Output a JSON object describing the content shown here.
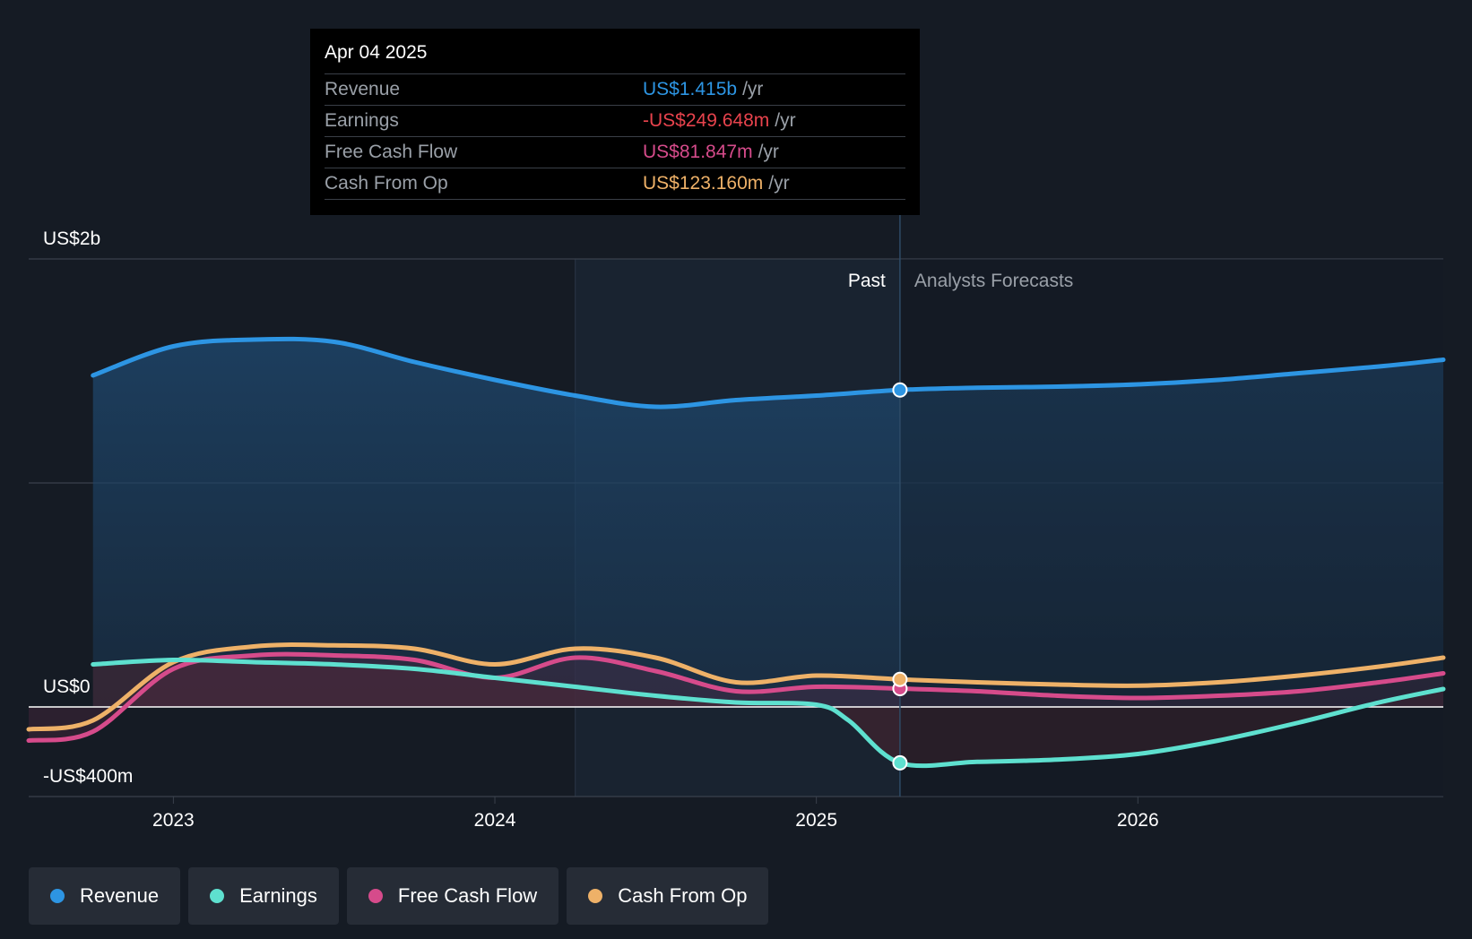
{
  "tooltip": {
    "date": "Apr 04 2025",
    "rows": [
      {
        "label": "Revenue",
        "value": "US$1.415b",
        "unit": "/yr",
        "color": "#2d95e3"
      },
      {
        "label": "Earnings",
        "value": "-US$249.648m",
        "unit": "/yr",
        "color": "#e8434d"
      },
      {
        "label": "Free Cash Flow",
        "value": "US$81.847m",
        "unit": "/yr",
        "color": "#d64b8b"
      },
      {
        "label": "Cash From Op",
        "value": "US$123.160m",
        "unit": "/yr",
        "color": "#eeb168"
      }
    ]
  },
  "legend": [
    {
      "label": "Revenue",
      "color": "#2d95e3"
    },
    {
      "label": "Earnings",
      "color": "#5ee0cf"
    },
    {
      "label": "Free Cash Flow",
      "color": "#d64b8b"
    },
    {
      "label": "Cash From Op",
      "color": "#eeb168"
    }
  ],
  "chart_data": {
    "type": "line",
    "title": "",
    "xlabel": "",
    "ylabel": "",
    "xlim": [
      2022.55,
      2026.95
    ],
    "ylim": [
      -400,
      2000
    ],
    "y_tick_labels": [
      {
        "value": 2000,
        "label": "US$2b"
      },
      {
        "value": 0,
        "label": "US$0"
      },
      {
        "value": -400,
        "label": "-US$400m"
      }
    ],
    "gridlines": [
      2000,
      1000,
      -400
    ],
    "x_ticks": [
      {
        "value": 2023,
        "label": "2023"
      },
      {
        "value": 2024,
        "label": "2024"
      },
      {
        "value": 2025,
        "label": "2025"
      },
      {
        "value": 2026,
        "label": "2026"
      }
    ],
    "past_label": "Past",
    "forecast_label": "Analysts Forecasts",
    "past_band_start": 2024.25,
    "divider_x": 2025.26,
    "series": [
      {
        "name": "Revenue",
        "color": "#2d95e3",
        "fill": true,
        "x": [
          2022.75,
          2023.0,
          2023.25,
          2023.5,
          2023.75,
          2024.0,
          2024.25,
          2024.5,
          2024.75,
          2025.0,
          2025.26,
          2025.5,
          2025.75,
          2026.0,
          2026.25,
          2026.5,
          2026.75,
          2026.95
        ],
        "y": [
          1480,
          1610,
          1640,
          1630,
          1540,
          1460,
          1390,
          1340,
          1370,
          1390,
          1415,
          1425,
          1430,
          1440,
          1460,
          1490,
          1520,
          1550
        ]
      },
      {
        "name": "Earnings",
        "color": "#5ee0cf",
        "fill": false,
        "x": [
          2022.75,
          2023.0,
          2023.25,
          2023.5,
          2023.75,
          2024.0,
          2024.25,
          2024.5,
          2024.75,
          2025.0,
          2025.1,
          2025.26,
          2025.5,
          2025.75,
          2026.0,
          2026.25,
          2026.5,
          2026.75,
          2026.95
        ],
        "y": [
          190,
          210,
          200,
          190,
          170,
          130,
          90,
          50,
          20,
          10,
          -60,
          -249.648,
          -245,
          -235,
          -210,
          -150,
          -70,
          20,
          80
        ]
      },
      {
        "name": "Free Cash Flow",
        "color": "#d64b8b",
        "fill": false,
        "x": [
          2022.55,
          2022.75,
          2023.0,
          2023.25,
          2023.5,
          2023.75,
          2024.0,
          2024.25,
          2024.5,
          2024.75,
          2025.0,
          2025.26,
          2025.5,
          2025.75,
          2026.0,
          2026.25,
          2026.5,
          2026.75,
          2026.95
        ],
        "y": [
          -150,
          -110,
          170,
          230,
          230,
          210,
          130,
          220,
          160,
          70,
          90,
          81.847,
          70,
          50,
          40,
          50,
          70,
          110,
          150
        ]
      },
      {
        "name": "Cash From Op",
        "color": "#eeb168",
        "fill": false,
        "x": [
          2022.55,
          2022.75,
          2023.0,
          2023.25,
          2023.5,
          2023.75,
          2024.0,
          2024.25,
          2024.5,
          2024.75,
          2025.0,
          2025.26,
          2025.5,
          2025.75,
          2026.0,
          2026.25,
          2026.5,
          2026.75,
          2026.95
        ],
        "y": [
          -100,
          -60,
          200,
          270,
          275,
          260,
          190,
          260,
          220,
          110,
          140,
          123.16,
          110,
          100,
          95,
          110,
          140,
          180,
          220
        ]
      }
    ]
  }
}
